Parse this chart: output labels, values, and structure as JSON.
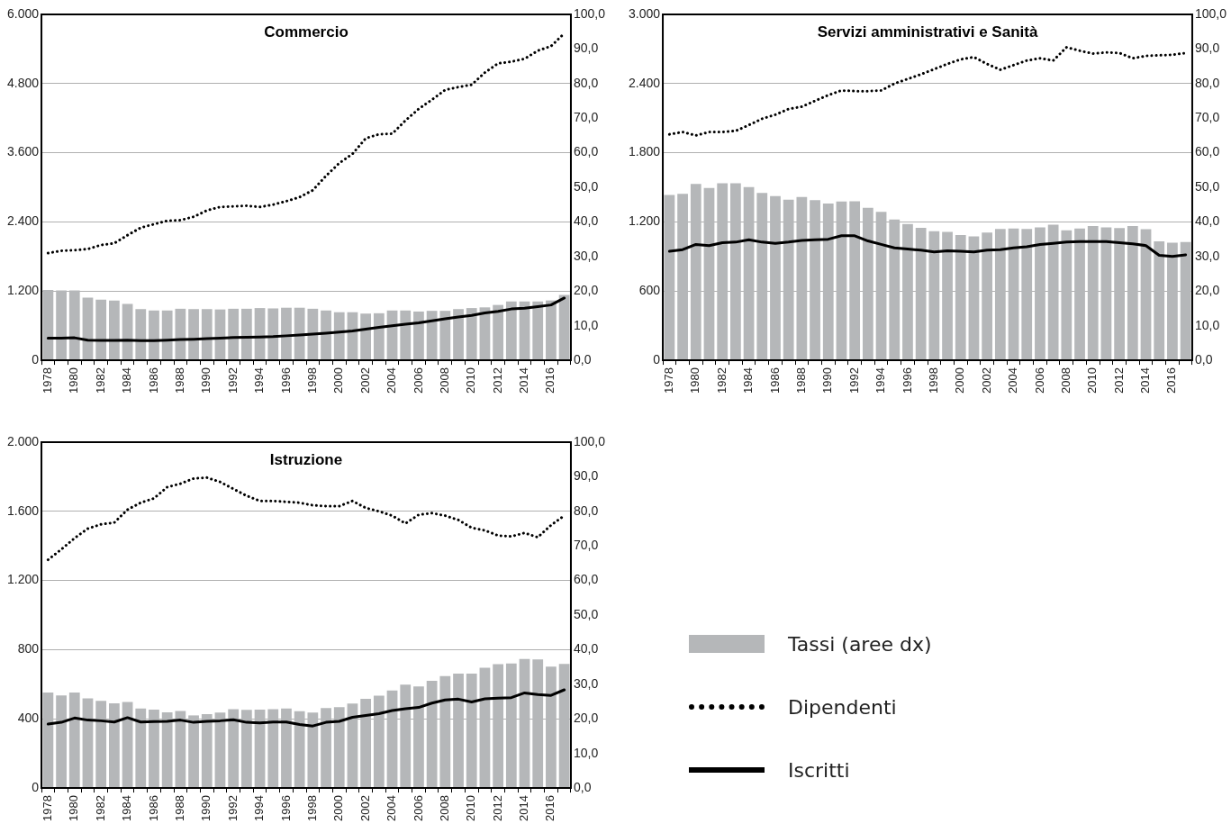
{
  "chart_data": [
    {
      "type": "bar",
      "title": "Commercio",
      "categories": [
        "1978",
        null,
        "1980",
        null,
        "1982",
        null,
        "1984",
        null,
        "1986",
        null,
        "1988",
        null,
        "1990",
        null,
        "1992",
        null,
        "1994",
        null,
        "1996",
        null,
        "1998",
        null,
        "2000",
        null,
        "2002",
        null,
        "2004",
        null,
        "2006",
        null,
        "2008",
        null,
        "2010",
        null,
        "2012",
        null,
        "2014",
        null,
        "2016",
        null
      ],
      "series": [
        {
          "axis": "y2",
          "color": "#b5b7b9",
          "values": [
            20.3,
            20.2,
            20.2,
            18.1,
            17.5,
            17.3,
            16.3,
            14.8,
            14.4,
            14.4,
            14.9,
            14.8,
            14.8,
            14.7,
            14.9,
            14.9,
            15.1,
            15.0,
            15.2,
            15.2,
            14.9,
            14.4,
            13.9,
            13.9,
            13.5,
            13.6,
            14.4,
            14.4,
            14.1,
            14.3,
            14.3,
            14.8,
            15.1,
            15.3,
            16.0,
            17.0,
            17.0,
            17.0,
            17.3,
            18.9
          ]
        },
        {
          "type": "line",
          "line_style": "dotted",
          "color": "#000000",
          "values": [
            1860,
            1900,
            1910,
            1930,
            2000,
            2030,
            2170,
            2300,
            2360,
            2420,
            2430,
            2490,
            2600,
            2660,
            2670,
            2680,
            2660,
            2700,
            2760,
            2830,
            2950,
            3200,
            3420,
            3580,
            3850,
            3920,
            3930,
            4160,
            4360,
            4520,
            4690,
            4740,
            4780,
            4990,
            5150,
            5180,
            5230,
            5370,
            5450,
            5670
          ]
        },
        {
          "type": "line",
          "line_style": "solid",
          "color": "#000000",
          "values": [
            385,
            385,
            390,
            350,
            345,
            345,
            350,
            340,
            340,
            350,
            360,
            365,
            375,
            385,
            395,
            400,
            405,
            410,
            425,
            440,
            455,
            470,
            490,
            510,
            540,
            570,
            600,
            625,
            650,
            685,
            720,
            750,
            780,
            820,
            850,
            890,
            905,
            930,
            960,
            1080
          ]
        }
      ],
      "ylim": [
        0,
        6000
      ],
      "yticks": [
        0,
        {
          "value": 1200,
          "label": "1.200"
        },
        {
          "value": 2400,
          "label": "2.400"
        },
        {
          "value": 3600,
          "label": "3.600"
        },
        {
          "value": 4800,
          "label": "4.800"
        },
        {
          "value": 6000,
          "label": "6.000"
        }
      ],
      "y2lim": [
        0,
        100
      ],
      "y2ticks": [
        {
          "value": 0,
          "label": "0,0"
        },
        {
          "value": 10,
          "label": "10,0"
        },
        {
          "value": 20,
          "label": "20,0"
        },
        {
          "value": 30,
          "label": "30,0"
        },
        {
          "value": 40,
          "label": "40,0"
        },
        {
          "value": 50,
          "label": "50,0"
        },
        {
          "value": 60,
          "label": "60,0"
        },
        {
          "value": 70,
          "label": "70,0"
        },
        {
          "value": 80,
          "label": "80,0"
        },
        {
          "value": 90,
          "label": "90,0"
        },
        {
          "value": 100,
          "label": "100,0"
        }
      ],
      "grid": "y",
      "marker": "none"
    },
    {
      "type": "bar",
      "title": "Servizi amministrativi e Sanità",
      "categories": [
        "1978",
        null,
        "1980",
        null,
        "1982",
        null,
        "1984",
        null,
        "1986",
        null,
        "1988",
        null,
        "1990",
        null,
        "1992",
        null,
        "1994",
        null,
        "1996",
        null,
        "1998",
        null,
        "2000",
        null,
        "2002",
        null,
        "2004",
        null,
        "2006",
        null,
        "2008",
        null,
        "2010",
        null,
        "2012",
        null,
        "2014",
        null,
        "2016",
        null
      ],
      "series": [
        {
          "axis": "y2",
          "color": "#b5b7b9",
          "values": [
            47.8,
            48.1,
            51.0,
            49.8,
            51.2,
            51.2,
            50.1,
            48.4,
            47.5,
            46.4,
            47.2,
            46.3,
            45.3,
            45.9,
            46.0,
            44.1,
            42.9,
            40.7,
            39.4,
            38.3,
            37.3,
            37.1,
            36.2,
            35.8,
            36.9,
            38.0,
            38.1,
            38.0,
            38.4,
            39.2,
            37.6,
            38.1,
            38.8,
            38.4,
            38.2,
            38.8,
            37.9,
            34.4,
            34.0,
            34.2
          ]
        },
        {
          "type": "line",
          "line_style": "dotted",
          "color": "#000000",
          "values": [
            1960,
            1980,
            1950,
            1980,
            1980,
            1990,
            2040,
            2095,
            2130,
            2180,
            2200,
            2250,
            2300,
            2340,
            2335,
            2335,
            2340,
            2400,
            2440,
            2480,
            2525,
            2570,
            2610,
            2630,
            2570,
            2520,
            2560,
            2600,
            2620,
            2600,
            2715,
            2685,
            2660,
            2670,
            2665,
            2620,
            2640,
            2645,
            2650,
            2665
          ]
        },
        {
          "type": "line",
          "line_style": "solid",
          "color": "#000000",
          "values": [
            945,
            960,
            1005,
            995,
            1020,
            1025,
            1045,
            1025,
            1015,
            1025,
            1040,
            1045,
            1050,
            1080,
            1080,
            1035,
            1005,
            975,
            965,
            955,
            940,
            950,
            945,
            940,
            955,
            960,
            975,
            985,
            1005,
            1015,
            1025,
            1030,
            1030,
            1030,
            1020,
            1010,
            995,
            910,
            900,
            915
          ]
        }
      ],
      "ylim": [
        0,
        3000
      ],
      "yticks": [
        0,
        600,
        {
          "value": 1200,
          "label": "1.200"
        },
        {
          "value": 1800,
          "label": "1.800"
        },
        {
          "value": 2400,
          "label": "2.400"
        },
        {
          "value": 3000,
          "label": "3.000"
        }
      ],
      "y2lim": [
        0,
        100
      ],
      "y2ticks": [
        {
          "value": 0,
          "label": "0,0"
        },
        {
          "value": 10,
          "label": "10,0"
        },
        {
          "value": 20,
          "label": "20,0"
        },
        {
          "value": 30,
          "label": "30,0"
        },
        {
          "value": 40,
          "label": "40,0"
        },
        {
          "value": 50,
          "label": "50,0"
        },
        {
          "value": 60,
          "label": "60,0"
        },
        {
          "value": 70,
          "label": "70,0"
        },
        {
          "value": 80,
          "label": "80,0"
        },
        {
          "value": 90,
          "label": "90,0"
        },
        {
          "value": 100,
          "label": "100,0"
        }
      ],
      "grid": "y",
      "marker": "none"
    },
    {
      "type": "bar",
      "title": "Istruzione",
      "categories": [
        "1978",
        null,
        "1980",
        null,
        "1982",
        null,
        "1984",
        null,
        "1986",
        null,
        "1988",
        null,
        "1990",
        null,
        "1992",
        null,
        "1994",
        null,
        "1996",
        null,
        "1998",
        null,
        "2000",
        null,
        "2002",
        null,
        "2004",
        null,
        "2006",
        null,
        "2008",
        null,
        "2010",
        null,
        "2012",
        null,
        "2014",
        null,
        "2016",
        null
      ],
      "series": [
        {
          "name": "Tassi (aree dx)",
          "axis": "y2",
          "color": "#b5b7b9",
          "values": [
            27.6,
            26.8,
            27.6,
            25.9,
            25.2,
            24.5,
            24.9,
            23.0,
            22.7,
            21.9,
            22.3,
            21.0,
            21.4,
            21.8,
            22.8,
            22.6,
            22.7,
            22.8,
            23.0,
            22.2,
            21.8,
            23.1,
            23.4,
            24.4,
            25.8,
            26.7,
            28.2,
            29.9,
            29.4,
            31.0,
            32.4,
            33.1,
            33.1,
            34.8,
            35.8,
            36.0,
            37.3,
            37.2,
            35.1,
            35.9
          ]
        },
        {
          "name": "Dipendenti",
          "type": "line",
          "line_style": "dotted",
          "color": "#000000",
          "values": [
            1320,
            1380,
            1445,
            1500,
            1525,
            1535,
            1610,
            1650,
            1675,
            1740,
            1760,
            1790,
            1795,
            1770,
            1730,
            1690,
            1660,
            1660,
            1655,
            1650,
            1635,
            1630,
            1630,
            1660,
            1620,
            1600,
            1575,
            1530,
            1580,
            1590,
            1575,
            1550,
            1505,
            1490,
            1460,
            1455,
            1475,
            1450,
            1520,
            1575
          ]
        },
        {
          "name": "Iscritti",
          "type": "line",
          "line_style": "solid",
          "color": "#000000",
          "values": [
            370,
            380,
            405,
            393,
            389,
            382,
            407,
            382,
            384,
            386,
            393,
            380,
            386,
            389,
            395,
            380,
            377,
            382,
            382,
            368,
            359,
            380,
            386,
            409,
            420,
            430,
            448,
            459,
            466,
            491,
            509,
            514,
            498,
            516,
            520,
            523,
            550,
            541,
            536,
            568
          ]
        }
      ],
      "ylim": [
        0,
        2000
      ],
      "yticks": [
        0,
        400,
        800,
        {
          "value": 1200,
          "label": "1.200"
        },
        {
          "value": 1600,
          "label": "1.600"
        },
        {
          "value": 2000,
          "label": "2.000"
        }
      ],
      "y2lim": [
        0,
        100
      ],
      "y2ticks": [
        {
          "value": 0,
          "label": "0,0"
        },
        {
          "value": 10,
          "label": "10,0"
        },
        {
          "value": 20,
          "label": "20,0"
        },
        {
          "value": 30,
          "label": "30,0"
        },
        {
          "value": 40,
          "label": "40,0"
        },
        {
          "value": 50,
          "label": "50,0"
        },
        {
          "value": 60,
          "label": "60,0"
        },
        {
          "value": 70,
          "label": "70,0"
        },
        {
          "value": 80,
          "label": "80,0"
        },
        {
          "value": 90,
          "label": "90,0"
        },
        {
          "value": 100,
          "label": "100,0"
        }
      ],
      "grid": "y",
      "legend": "right",
      "marker": "none"
    }
  ]
}
